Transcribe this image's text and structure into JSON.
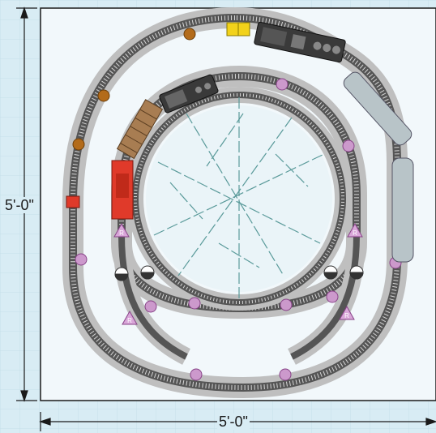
{
  "dimensions": {
    "width_label": "5'-0\"",
    "height_label": "5'-0\""
  },
  "colors": {
    "background": "#d8ecf4",
    "board": "#f2f8fb",
    "track_bed": "#bfbfbf",
    "rail": "#555555",
    "block_marker": "#cc99cc",
    "accessory_marker": "#b36b1a",
    "locomotive": "#3a3a3a",
    "passenger_car": "#b8c4c8",
    "boxcar": "#a87d52",
    "caboose": "#e03a2a",
    "gondola": "#f2d21b"
  },
  "switches": [
    {
      "name": "left-inner-switch",
      "letter": "R"
    },
    {
      "name": "left-lower-switch",
      "letter": "R"
    },
    {
      "name": "right-inner-switch",
      "letter": "R"
    },
    {
      "name": "right-lower-switch",
      "letter": "R"
    }
  ]
}
